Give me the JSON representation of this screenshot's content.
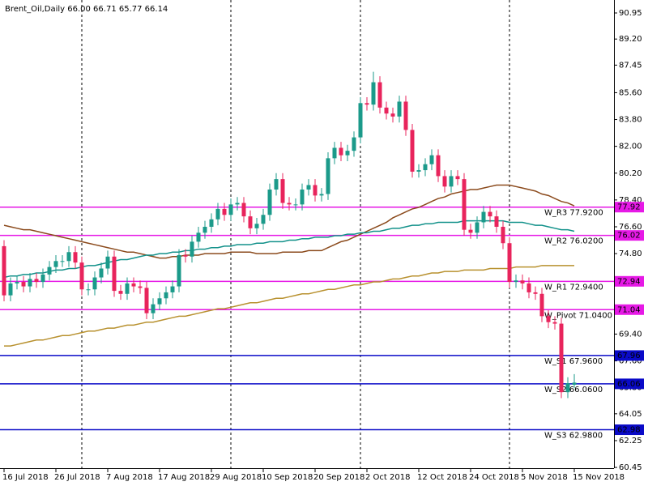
{
  "chart_data": {
    "type": "candlestick",
    "title": "Brent_Oil,Daily  66.00 66.71 65.77 66.14",
    "categories": [
      "16 Jul 2018",
      null,
      null,
      null,
      null,
      null,
      null,
      null,
      "26 Jul 2018",
      null,
      null,
      null,
      null,
      null,
      null,
      null,
      "7 Aug 2018",
      null,
      null,
      null,
      null,
      null,
      null,
      null,
      "17 Aug 2018",
      null,
      null,
      null,
      null,
      null,
      null,
      null,
      "29 Aug 2018",
      null,
      null,
      null,
      null,
      null,
      null,
      null,
      "10 Sep 2018",
      null,
      null,
      null,
      null,
      null,
      null,
      null,
      "20 Sep 2018",
      null,
      null,
      null,
      null,
      null,
      null,
      null,
      "2 Oct 2018",
      null,
      null,
      null,
      null,
      null,
      null,
      null,
      "12 Oct 2018",
      null,
      null,
      null,
      null,
      null,
      null,
      null,
      "24 Oct 2018",
      null,
      null,
      null,
      null,
      null,
      null,
      null,
      "5 Nov 2018",
      null,
      null,
      null,
      null,
      null,
      null,
      null,
      "15 Nov 2018"
    ],
    "open": [
      75.3,
      72.0,
      72.8,
      72.9,
      72.6,
      73.1,
      72.9,
      73.4,
      73.9,
      74.3,
      74.3,
      74.9,
      74.2,
      72.4,
      72.4,
      73.2,
      73.8,
      74.6,
      72.3,
      72.1,
      72.8,
      72.6,
      72.5,
      70.8,
      71.4,
      71.8,
      72.2,
      72.6,
      74.7,
      74.6,
      75.6,
      76.2,
      76.6,
      77.1,
      77.8,
      77.4,
      78.1,
      78.2,
      77.3,
      76.5,
      76.8,
      77.4,
      79.1,
      79.8,
      78.2,
      78.1,
      78.1,
      79.1,
      79.4,
      78.7,
      78.8,
      81.2,
      81.9,
      81.4,
      81.7,
      82.6,
      84.9,
      84.8,
      86.3,
      84.6,
      84.2,
      84.0,
      85.0,
      83.1,
      80.3,
      80.4,
      80.8,
      81.4,
      80.0,
      79.3,
      80.0,
      79.8,
      76.4,
      76.2,
      76.9,
      77.6,
      77.3,
      76.6,
      75.5,
      72.9,
      73.0,
      72.8,
      72.2,
      72.1,
      70.6,
      70.2,
      70.1,
      65.5,
      66.0
    ],
    "high": [
      75.7,
      73.2,
      73.3,
      73.3,
      73.5,
      73.5,
      73.8,
      74.3,
      74.7,
      74.7,
      75.3,
      75.3,
      74.6,
      72.8,
      73.6,
      74.2,
      75.0,
      75.0,
      72.7,
      73.2,
      73.2,
      73.0,
      72.9,
      71.8,
      72.2,
      72.6,
      73.0,
      75.1,
      75.1,
      76.0,
      76.6,
      77.0,
      77.5,
      78.2,
      78.2,
      78.5,
      78.6,
      78.6,
      77.7,
      77.2,
      77.8,
      79.5,
      80.2,
      80.2,
      78.6,
      78.5,
      79.5,
      79.8,
      79.8,
      79.2,
      81.6,
      82.3,
      82.3,
      82.1,
      83.0,
      85.3,
      85.3,
      87.0,
      86.7,
      85.0,
      84.6,
      85.4,
      85.4,
      83.5,
      80.8,
      81.2,
      81.8,
      81.8,
      80.4,
      80.4,
      80.4,
      80.2,
      76.8,
      77.3,
      78.0,
      78.0,
      77.7,
      77.0,
      75.9,
      73.4,
      73.4,
      73.2,
      72.6,
      72.5,
      71.0,
      70.6,
      70.5,
      66.5,
      66.71
    ],
    "low": [
      71.6,
      71.6,
      72.4,
      72.2,
      72.2,
      72.5,
      72.5,
      73.0,
      73.5,
      73.9,
      73.9,
      73.8,
      72.0,
      72.0,
      72.0,
      72.8,
      73.4,
      71.9,
      71.7,
      71.7,
      72.2,
      72.1,
      70.4,
      70.4,
      71.0,
      71.4,
      71.8,
      72.2,
      74.2,
      74.2,
      75.2,
      75.8,
      76.2,
      76.7,
      77.0,
      77.0,
      77.7,
      76.9,
      76.1,
      76.1,
      76.4,
      77.0,
      78.7,
      77.8,
      77.7,
      77.7,
      77.7,
      78.7,
      78.3,
      78.3,
      78.4,
      80.8,
      81.0,
      81.0,
      81.3,
      82.2,
      84.4,
      84.4,
      84.2,
      83.8,
      83.6,
      83.6,
      82.7,
      79.9,
      79.9,
      80.0,
      80.4,
      79.6,
      78.9,
      78.9,
      79.4,
      76.0,
      75.8,
      75.8,
      76.5,
      76.9,
      76.2,
      75.1,
      72.5,
      72.5,
      72.4,
      71.8,
      71.7,
      70.2,
      69.8,
      69.7,
      65.1,
      65.1,
      65.77
    ],
    "close": [
      72.0,
      72.8,
      72.9,
      72.6,
      73.1,
      72.9,
      73.4,
      73.9,
      74.3,
      74.3,
      74.9,
      74.2,
      72.4,
      72.4,
      73.2,
      73.8,
      74.6,
      72.3,
      72.1,
      72.8,
      72.6,
      72.5,
      70.8,
      71.4,
      71.8,
      72.2,
      72.6,
      74.7,
      74.6,
      75.6,
      76.2,
      76.6,
      77.1,
      77.8,
      77.4,
      78.1,
      78.2,
      77.3,
      76.5,
      76.8,
      77.4,
      79.1,
      79.8,
      78.2,
      78.1,
      78.1,
      79.1,
      79.4,
      78.7,
      78.8,
      81.2,
      81.9,
      81.4,
      81.7,
      82.6,
      84.9,
      84.8,
      86.3,
      84.6,
      84.2,
      84.0,
      85.0,
      83.1,
      80.3,
      80.4,
      80.8,
      81.4,
      80.0,
      79.3,
      80.0,
      79.8,
      76.4,
      76.2,
      76.9,
      77.6,
      77.3,
      76.6,
      75.5,
      72.9,
      73.0,
      72.8,
      72.2,
      72.1,
      70.6,
      70.2,
      70.1,
      65.5,
      66.1,
      66.14
    ],
    "up_color": "#1b9a8a",
    "down_color": "#e8245c",
    "series": [
      {
        "color": "#b8912f",
        "values": [
          68.6,
          68.6,
          68.7,
          68.8,
          68.9,
          69.0,
          69.0,
          69.1,
          69.2,
          69.3,
          69.3,
          69.4,
          69.5,
          69.6,
          69.6,
          69.7,
          69.8,
          69.8,
          69.9,
          70.0,
          70.0,
          70.1,
          70.2,
          70.2,
          70.3,
          70.4,
          70.5,
          70.6,
          70.6,
          70.7,
          70.8,
          70.9,
          71.0,
          71.1,
          71.1,
          71.2,
          71.3,
          71.4,
          71.5,
          71.5,
          71.6,
          71.7,
          71.8,
          71.8,
          71.9,
          72.0,
          72.1,
          72.1,
          72.2,
          72.3,
          72.4,
          72.4,
          72.5,
          72.6,
          72.7,
          72.7,
          72.8,
          72.9,
          72.9,
          73.0,
          73.1,
          73.1,
          73.2,
          73.3,
          73.3,
          73.4,
          73.5,
          73.5,
          73.6,
          73.6,
          73.6,
          73.7,
          73.7,
          73.7,
          73.7,
          73.8,
          73.8,
          73.8,
          73.8,
          73.9,
          73.9,
          73.9,
          73.9,
          74.0,
          74.0,
          74.0,
          74.0,
          74.0,
          74.0
        ]
      },
      {
        "color": "#8b4a1c",
        "values": [
          76.7,
          76.6,
          76.5,
          76.4,
          76.4,
          76.3,
          76.2,
          76.1,
          76.0,
          75.9,
          75.8,
          75.7,
          75.6,
          75.5,
          75.4,
          75.3,
          75.2,
          75.1,
          75.0,
          74.9,
          74.9,
          74.8,
          74.7,
          74.6,
          74.5,
          74.5,
          74.6,
          74.6,
          74.7,
          74.7,
          74.7,
          74.8,
          74.8,
          74.8,
          74.8,
          74.9,
          74.9,
          74.9,
          74.9,
          74.8,
          74.8,
          74.8,
          74.8,
          74.9,
          74.9,
          74.9,
          74.9,
          75.0,
          75.0,
          75.0,
          75.2,
          75.4,
          75.6,
          75.7,
          75.9,
          76.1,
          76.3,
          76.5,
          76.7,
          76.9,
          77.2,
          77.4,
          77.6,
          77.8,
          77.9,
          78.1,
          78.3,
          78.5,
          78.6,
          78.8,
          78.9,
          79.0,
          79.1,
          79.1,
          79.2,
          79.3,
          79.4,
          79.4,
          79.4,
          79.3,
          79.2,
          79.1,
          79.0,
          78.8,
          78.7,
          78.5,
          78.3,
          78.2,
          78.0
        ]
      },
      {
        "color": "#12918a",
        "values": [
          73.2,
          73.3,
          73.3,
          73.4,
          73.4,
          73.5,
          73.5,
          73.6,
          73.7,
          73.7,
          73.8,
          73.8,
          73.9,
          74.0,
          74.0,
          74.1,
          74.2,
          74.3,
          74.4,
          74.4,
          74.5,
          74.6,
          74.7,
          74.7,
          74.8,
          74.8,
          74.9,
          74.9,
          75.0,
          75.0,
          75.1,
          75.1,
          75.2,
          75.2,
          75.3,
          75.3,
          75.4,
          75.4,
          75.4,
          75.5,
          75.5,
          75.6,
          75.6,
          75.6,
          75.7,
          75.7,
          75.8,
          75.8,
          75.9,
          75.9,
          75.9,
          76.0,
          76.0,
          76.1,
          76.1,
          76.2,
          76.2,
          76.3,
          76.3,
          76.4,
          76.5,
          76.5,
          76.6,
          76.7,
          76.7,
          76.8,
          76.8,
          76.9,
          76.9,
          76.9,
          76.9,
          77.0,
          77.0,
          77.0,
          77.0,
          77.0,
          77.0,
          77.0,
          76.9,
          76.9,
          76.9,
          76.8,
          76.7,
          76.7,
          76.6,
          76.5,
          76.4,
          76.4,
          76.3
        ]
      }
    ],
    "levels": [
      {
        "value": 77.92,
        "color": "#e619e6",
        "label": "W_R3 77.9200"
      },
      {
        "value": 76.02,
        "color": "#e619e6",
        "label": "W_R2 76.0200"
      },
      {
        "value": 72.94,
        "color": "#e619e6",
        "label": "W_R1 72.9400"
      },
      {
        "value": 71.04,
        "color": "#e619e6",
        "label": "W_Pivot 71.0400"
      },
      {
        "value": 67.96,
        "color": "#0a0ac8",
        "label": "W_S1 67.9600"
      },
      {
        "value": 66.06,
        "color": "#0a0ac8",
        "label": "W_S2 66.0600"
      },
      {
        "value": 62.98,
        "color": "#0a0ac8",
        "label": "W_S3 62.9800"
      }
    ],
    "ylim": [
      60.4,
      91.82
    ],
    "yticks": [
      {
        "value": 90.95,
        "label": "90.95"
      },
      {
        "value": 89.2,
        "label": "89.20"
      },
      {
        "value": 87.45,
        "label": "87.45"
      },
      {
        "value": 85.6,
        "label": "85.60"
      },
      {
        "value": 83.8,
        "label": "83.80"
      },
      {
        "value": 82,
        "label": "82.00"
      },
      {
        "value": 80.2,
        "label": "80.20"
      },
      {
        "value": 78.4,
        "label": "78.40"
      },
      {
        "value": 76.6,
        "label": "76.60"
      },
      {
        "value": 74.8,
        "label": "74.80"
      },
      {
        "value": 72.95,
        "label": "72.95"
      },
      {
        "value": 71.15,
        "label": "71.15"
      },
      {
        "value": 69.4,
        "label": "69.40"
      },
      {
        "value": 67.6,
        "label": "67.60"
      },
      {
        "value": 65.8,
        "label": "65.80"
      },
      {
        "value": 64.05,
        "label": "64.05"
      },
      {
        "value": 62.25,
        "label": "62.25"
      },
      {
        "value": 60.45,
        "label": "60.45"
      }
    ]
  }
}
